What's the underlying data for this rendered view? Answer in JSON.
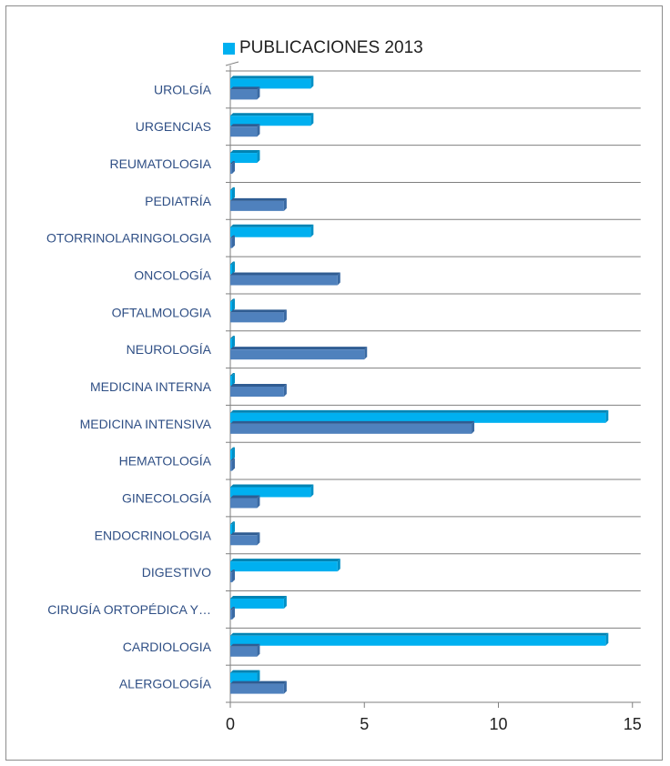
{
  "colors": {
    "series1": "#00b0f0",
    "series1_top": "#0083b3",
    "series1_side": "#0090c6",
    "series2": "#4f81bd",
    "series2_top": "#2f5c92",
    "series2_side": "#3a6aa3",
    "gridline": "#7f7f7f",
    "axis": "#7f7f7f",
    "category_text": "#2f4f85"
  },
  "chart_data": {
    "type": "bar",
    "orientation": "horizontal",
    "style": "3d",
    "title": "",
    "xlabel": "",
    "ylabel": "",
    "xlim": [
      0,
      15
    ],
    "x_ticks": [
      "0",
      "5",
      "10",
      "15"
    ],
    "grid": true,
    "legend_position": "top",
    "categories": [
      "UROLGÍA",
      "URGENCIAS",
      "REUMATOLOGIA",
      "PEDIATRÍA",
      "OTORRINOLARINGOLOGIA",
      "ONCOLOGÍA",
      "OFTALMOLOGIA",
      "NEUROLOGÍA",
      "MEDICINA INTERNA",
      "MEDICINA INTENSIVA",
      "HEMATOLOGÍA",
      "GINECOLOGÍA",
      "ENDOCRINOLOGIA",
      "DIGESTIVO",
      "CIRUGÍA ORTOPÉDICA Y…",
      "CARDIOLOGIA",
      "ALERGOLOGÍA"
    ],
    "series": [
      {
        "name": "PUBLICACIONES 2013",
        "values": [
          3,
          3,
          1,
          0,
          3,
          0,
          0,
          0,
          0,
          14,
          0,
          3,
          0,
          4,
          2,
          14,
          1
        ]
      },
      {
        "values": [
          1,
          1,
          0,
          2,
          0,
          4,
          2,
          5,
          2,
          9,
          0,
          1,
          1,
          0,
          0,
          1,
          2
        ]
      }
    ]
  }
}
